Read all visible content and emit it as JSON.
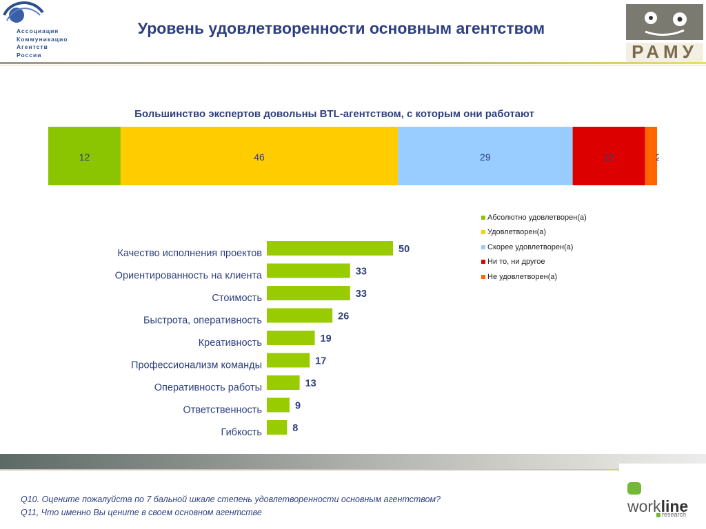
{
  "header": {
    "title": "Уровень удовлетворенности основным агентством",
    "assoc_logo": {
      "lines": [
        "Ассоциация",
        "Коммуникацио",
        "Агентств",
        "России"
      ]
    },
    "ramu_logo_text": "РАМУ"
  },
  "colors": {
    "green": "#8bc400",
    "yellow": "#ffcc00",
    "lightblue": "#99ccff",
    "red": "#dd0000",
    "orange": "#ff6600",
    "bar": "#99cc00",
    "title_blue": "#2e3f7d"
  },
  "chart_data": [
    {
      "type": "bar",
      "orientation": "horizontal-stacked",
      "title": "Большинство экспертов довольны BTL-агентством, с которым они работают",
      "series": [
        {
          "name": "Абсолютно удовлетворен(а)",
          "value": 12,
          "color": "#8bc400"
        },
        {
          "name": "Удовлетворен(а)",
          "value": 46,
          "color": "#ffcc00"
        },
        {
          "name": "Скорее удовлетворен(а)",
          "value": 29,
          "color": "#99ccff"
        },
        {
          "name": "Ни то, ни другое",
          "value": 12,
          "color": "#dd0000"
        },
        {
          "name": "Не удовлетворен(а)",
          "value": 2,
          "color": "#ff6600"
        }
      ],
      "legend_position": "right"
    },
    {
      "type": "bar",
      "orientation": "horizontal",
      "categories": [
        "Качество исполнения проектов",
        "Ориентированность на клиента",
        "Стоимость",
        "Быстрота, оперативность",
        "Креативность",
        "Профессионализм команды",
        "Оперативность  работы",
        "Ответственность",
        "Гибкость"
      ],
      "values": [
        50,
        33,
        33,
        26,
        19,
        17,
        13,
        9,
        8
      ],
      "xlim": [
        0,
        50
      ]
    }
  ],
  "footer": {
    "notes": [
      "Q10. Оцените пожалуйста по 7 бальной шкале степень удовлетворенности основным агентством?",
      "Q11, Что именно Вы цените в своем основном агентстве"
    ],
    "workline": {
      "work": "work",
      "line": "line",
      "sub": "research"
    }
  }
}
